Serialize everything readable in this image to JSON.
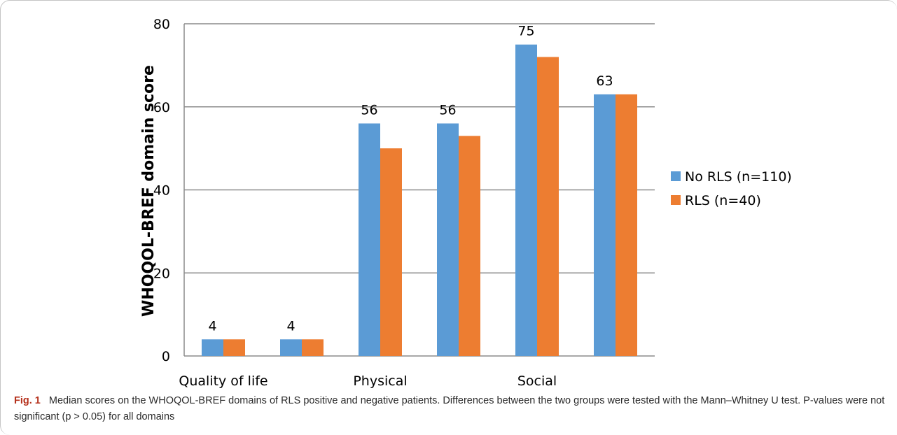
{
  "chart_data": {
    "type": "bar",
    "title": "",
    "xlabel": "",
    "ylabel": "WHOQOL-BREF domain score",
    "ylim": [
      0,
      80
    ],
    "yticks": [
      0,
      20,
      40,
      60,
      80
    ],
    "grid": true,
    "legend_position": "right",
    "categories": [
      "Quality of life",
      "",
      "Physical",
      "",
      "Social",
      ""
    ],
    "series": [
      {
        "name": "No RLS (n=110)",
        "values": [
          4,
          4,
          56,
          56,
          75,
          63
        ],
        "color": "#5b9bd5"
      },
      {
        "name": "RLS (n=40)",
        "values": [
          4,
          4,
          50,
          53,
          72,
          63
        ],
        "color": "#ed7d31"
      }
    ],
    "data_labels": [
      "4",
      "4",
      "56",
      "56",
      "75",
      "63"
    ]
  },
  "caption": {
    "label": "Fig. 1",
    "text": "Median scores on the WHOQOL-BREF domains of RLS positive and negative patients. Differences between the two groups were tested with the Mann–Whitney U test. P-values were not significant (p > 0.05) for all domains"
  }
}
